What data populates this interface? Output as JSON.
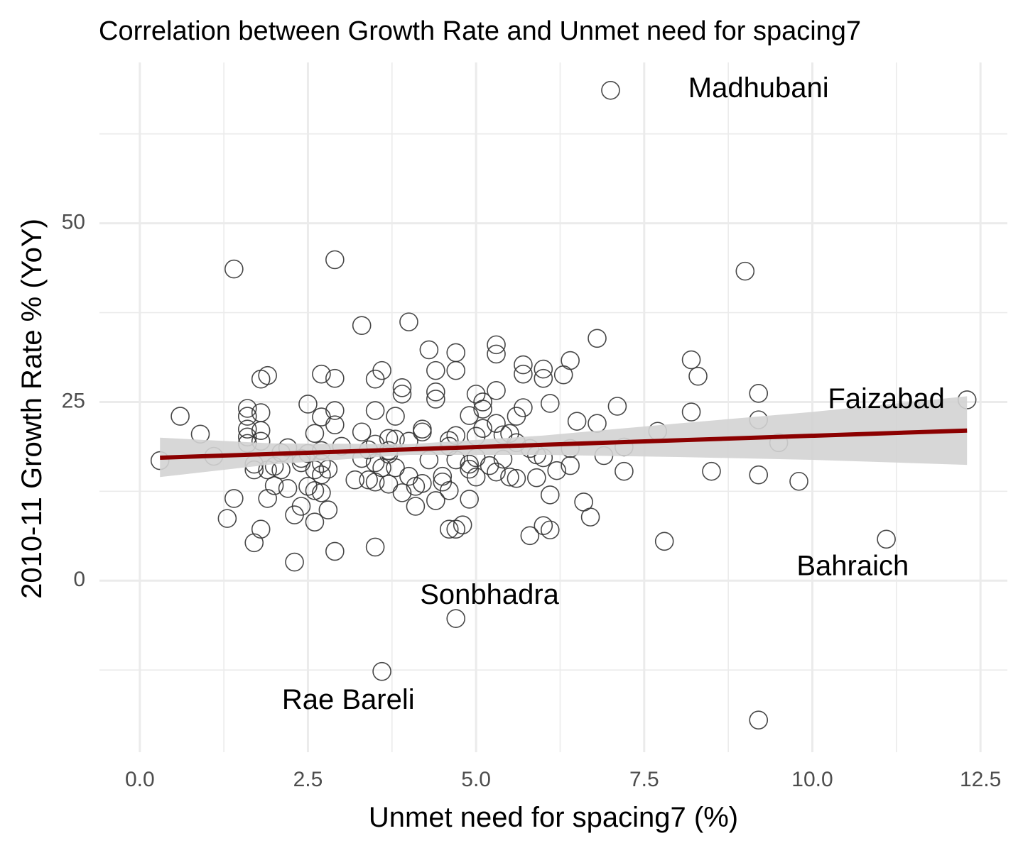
{
  "chart_data": {
    "type": "scatter",
    "title": "Correlation between Growth Rate and Unmet need for spacing7",
    "xlabel": "Unmet need for spacing7 (%)",
    "ylabel": "2010-11 Growth Rate % (YoY)",
    "xlim": [
      -0.6,
      12.9
    ],
    "ylim": [
      -24,
      72.5
    ],
    "x_ticks": [
      0,
      2.5,
      5,
      7.5,
      10,
      12.5
    ],
    "x_tick_labels": [
      "0.0",
      "2.5",
      "5.0",
      "7.5",
      "10.0",
      "12.5"
    ],
    "y_ticks": [
      0,
      25,
      50
    ],
    "y_tick_labels": [
      "0",
      "25",
      "50"
    ],
    "grid": true,
    "point_color": "#333333",
    "trend_color": "#8b0000",
    "band_color": "#d3d3d3",
    "trend_line": {
      "x": [
        0.3,
        12.3
      ],
      "y": [
        17.2,
        21.0
      ]
    },
    "confidence_band": {
      "x": [
        0.3,
        2.0,
        4.0,
        6.0,
        8.0,
        10.0,
        12.3
      ],
      "lower": [
        14.5,
        16.3,
        17.6,
        17.6,
        17.3,
        16.9,
        16.2
      ],
      "upper": [
        20.0,
        19.2,
        19.1,
        20.3,
        22.0,
        23.6,
        25.8
      ]
    },
    "annotations": [
      {
        "label": "Madhubani",
        "x": 9.2,
        "y": 68.7
      },
      {
        "label": "Faizabad",
        "x": 11.1,
        "y": 25.2
      },
      {
        "label": "Bahraich",
        "x": 10.6,
        "y": 1.8
      },
      {
        "label": "Sonbhadra",
        "x": 5.2,
        "y": -2.2
      },
      {
        "label": "Rae Bareli",
        "x": 3.1,
        "y": -16.9
      }
    ],
    "points": [
      [
        7.0,
        68.6
      ],
      [
        0.3,
        16.8
      ],
      [
        0.6,
        23.0
      ],
      [
        0.9,
        20.5
      ],
      [
        1.1,
        17.4
      ],
      [
        1.3,
        8.7
      ],
      [
        1.4,
        11.5
      ],
      [
        1.4,
        43.6
      ],
      [
        1.6,
        24.1
      ],
      [
        1.6,
        23.0
      ],
      [
        1.6,
        21.2
      ],
      [
        1.6,
        20.1
      ],
      [
        1.6,
        19.2
      ],
      [
        1.7,
        16.3
      ],
      [
        1.7,
        15.5
      ],
      [
        1.7,
        5.3
      ],
      [
        1.8,
        21.0
      ],
      [
        1.8,
        19.5
      ],
      [
        1.8,
        23.5
      ],
      [
        1.8,
        28.2
      ],
      [
        1.8,
        7.2
      ],
      [
        1.9,
        28.7
      ],
      [
        1.9,
        15.5
      ],
      [
        1.9,
        11.5
      ],
      [
        2.0,
        16.0
      ],
      [
        2.0,
        13.3
      ],
      [
        2.1,
        15.5
      ],
      [
        2.1,
        17.9
      ],
      [
        2.2,
        12.9
      ],
      [
        2.2,
        18.6
      ],
      [
        2.3,
        9.2
      ],
      [
        2.3,
        2.6
      ],
      [
        2.4,
        10.4
      ],
      [
        2.4,
        17.1
      ],
      [
        2.4,
        16.5
      ],
      [
        2.5,
        24.7
      ],
      [
        2.5,
        17.8
      ],
      [
        2.5,
        13.2
      ],
      [
        2.6,
        20.6
      ],
      [
        2.6,
        15.5
      ],
      [
        2.6,
        8.2
      ],
      [
        2.6,
        12.6
      ],
      [
        2.7,
        28.9
      ],
      [
        2.7,
        22.9
      ],
      [
        2.7,
        18.2
      ],
      [
        2.7,
        16.4
      ],
      [
        2.7,
        14.8
      ],
      [
        2.7,
        12.3
      ],
      [
        2.8,
        15.6
      ],
      [
        2.8,
        9.9
      ],
      [
        2.9,
        44.9
      ],
      [
        2.9,
        28.3
      ],
      [
        2.9,
        23.8
      ],
      [
        2.9,
        21.8
      ],
      [
        2.9,
        4.1
      ],
      [
        3.0,
        18.8
      ],
      [
        3.2,
        14.1
      ],
      [
        3.3,
        20.8
      ],
      [
        3.3,
        17.1
      ],
      [
        3.3,
        35.7
      ],
      [
        3.4,
        14.1
      ],
      [
        3.4,
        18.3
      ],
      [
        3.5,
        28.2
      ],
      [
        3.5,
        23.8
      ],
      [
        3.5,
        19.1
      ],
      [
        3.5,
        16.5
      ],
      [
        3.5,
        13.8
      ],
      [
        3.5,
        4.7
      ],
      [
        3.6,
        29.4
      ],
      [
        3.6,
        15.8
      ],
      [
        3.6,
        -12.7
      ],
      [
        3.7,
        19.9
      ],
      [
        3.7,
        18.2
      ],
      [
        3.7,
        17.7
      ],
      [
        3.7,
        13.5
      ],
      [
        3.8,
        23.0
      ],
      [
        3.8,
        19.8
      ],
      [
        3.8,
        15.8
      ],
      [
        3.9,
        27.0
      ],
      [
        3.9,
        26.1
      ],
      [
        3.9,
        12.3
      ],
      [
        4.0,
        36.2
      ],
      [
        4.0,
        19.5
      ],
      [
        4.0,
        14.6
      ],
      [
        4.1,
        13.2
      ],
      [
        4.1,
        10.4
      ],
      [
        4.2,
        21.2
      ],
      [
        4.2,
        20.8
      ],
      [
        4.2,
        13.6
      ],
      [
        4.3,
        32.3
      ],
      [
        4.3,
        16.9
      ],
      [
        4.4,
        29.4
      ],
      [
        4.4,
        26.4
      ],
      [
        4.4,
        25.4
      ],
      [
        4.4,
        11.2
      ],
      [
        4.5,
        14.6
      ],
      [
        4.5,
        13.8
      ],
      [
        4.6,
        19.6
      ],
      [
        4.6,
        18.8
      ],
      [
        4.6,
        12.6
      ],
      [
        4.6,
        7.2
      ],
      [
        4.7,
        31.9
      ],
      [
        4.7,
        29.4
      ],
      [
        4.7,
        20.3
      ],
      [
        4.7,
        16.9
      ],
      [
        4.7,
        7.2
      ],
      [
        4.7,
        -5.3
      ],
      [
        4.8,
        7.8
      ],
      [
        4.9,
        23.1
      ],
      [
        4.9,
        16.3
      ],
      [
        4.9,
        15.6
      ],
      [
        4.9,
        11.4
      ],
      [
        5.0,
        26.1
      ],
      [
        5.0,
        20.2
      ],
      [
        5.0,
        17.2
      ],
      [
        5.0,
        14.5
      ],
      [
        5.1,
        25.0
      ],
      [
        5.1,
        24.0
      ],
      [
        5.1,
        21.3
      ],
      [
        5.2,
        16.1
      ],
      [
        5.3,
        33.0
      ],
      [
        5.3,
        31.7
      ],
      [
        5.3,
        26.6
      ],
      [
        5.3,
        22.0
      ],
      [
        5.3,
        15.2
      ],
      [
        5.4,
        20.4
      ],
      [
        5.4,
        17.0
      ],
      [
        5.5,
        14.5
      ],
      [
        5.5,
        20.6
      ],
      [
        5.6,
        23.0
      ],
      [
        5.6,
        19.3
      ],
      [
        5.6,
        14.3
      ],
      [
        5.7,
        30.2
      ],
      [
        5.7,
        28.9
      ],
      [
        5.7,
        24.2
      ],
      [
        5.8,
        18.5
      ],
      [
        5.8,
        6.3
      ],
      [
        5.9,
        17.6
      ],
      [
        5.9,
        14.4
      ],
      [
        6.0,
        29.6
      ],
      [
        6.0,
        28.3
      ],
      [
        6.0,
        17.2
      ],
      [
        6.0,
        7.7
      ],
      [
        6.1,
        24.8
      ],
      [
        6.1,
        12.0
      ],
      [
        6.1,
        7.1
      ],
      [
        6.2,
        15.4
      ],
      [
        6.3,
        28.8
      ],
      [
        6.4,
        30.8
      ],
      [
        6.4,
        18.5
      ],
      [
        6.4,
        16.1
      ],
      [
        6.5,
        22.3
      ],
      [
        6.6,
        11.0
      ],
      [
        6.7,
        8.9
      ],
      [
        6.8,
        33.9
      ],
      [
        6.8,
        22.0
      ],
      [
        6.9,
        17.5
      ],
      [
        7.1,
        24.4
      ],
      [
        7.2,
        18.7
      ],
      [
        7.2,
        15.3
      ],
      [
        7.7,
        20.9
      ],
      [
        7.8,
        5.5
      ],
      [
        8.2,
        30.9
      ],
      [
        8.2,
        23.6
      ],
      [
        8.3,
        28.6
      ],
      [
        8.5,
        15.3
      ],
      [
        9.0,
        43.3
      ],
      [
        9.2,
        26.2
      ],
      [
        9.2,
        22.5
      ],
      [
        9.2,
        14.8
      ],
      [
        9.2,
        -19.5
      ],
      [
        9.5,
        19.3
      ],
      [
        9.8,
        13.9
      ],
      [
        11.1,
        5.8
      ],
      [
        12.3,
        25.3
      ]
    ]
  }
}
